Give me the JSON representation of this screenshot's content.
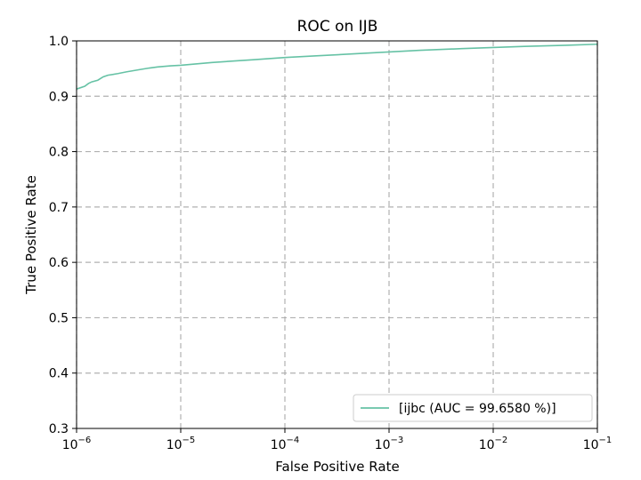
{
  "chart_data": {
    "type": "line",
    "title": "ROC on IJB",
    "xlabel": "False Positive Rate",
    "ylabel": "True Positive Rate",
    "x_scale": "log",
    "xlim": [
      1e-06,
      0.1
    ],
    "ylim": [
      0.3,
      1.0
    ],
    "x_ticks": [
      {
        "base": "10",
        "exp": "−6",
        "value": 1e-06
      },
      {
        "base": "10",
        "exp": "−5",
        "value": 1e-05
      },
      {
        "base": "10",
        "exp": "−4",
        "value": 0.0001
      },
      {
        "base": "10",
        "exp": "−3",
        "value": 0.001
      },
      {
        "base": "10",
        "exp": "−2",
        "value": 0.01
      },
      {
        "base": "10",
        "exp": "−1",
        "value": 0.1
      }
    ],
    "y_ticks": [
      "0.3",
      "0.4",
      "0.5",
      "0.6",
      "0.7",
      "0.8",
      "0.9",
      "1.0"
    ],
    "grid": true,
    "legend_position": "lower-right",
    "series": [
      {
        "name": "[ijbc (AUC = 99.6580 %)]",
        "color": "#66c2a5",
        "points": [
          [
            1e-06,
            0.913
          ],
          [
            1.2e-06,
            0.918
          ],
          [
            1.3e-06,
            0.923
          ],
          [
            1.4e-06,
            0.926
          ],
          [
            1.6e-06,
            0.929
          ],
          [
            1.8e-06,
            0.935
          ],
          [
            2e-06,
            0.938
          ],
          [
            2.5e-06,
            0.941
          ],
          [
            3e-06,
            0.944
          ],
          [
            4e-06,
            0.948
          ],
          [
            5e-06,
            0.951
          ],
          [
            6e-06,
            0.953
          ],
          [
            8e-06,
            0.955
          ],
          [
            1e-05,
            0.956
          ],
          [
            2e-05,
            0.961
          ],
          [
            5e-05,
            0.966
          ],
          [
            0.0001,
            0.97
          ],
          [
            0.0002,
            0.973
          ],
          [
            0.0005,
            0.977
          ],
          [
            0.001,
            0.98
          ],
          [
            0.002,
            0.983
          ],
          [
            0.005,
            0.986
          ],
          [
            0.01,
            0.988
          ],
          [
            0.02,
            0.99
          ],
          [
            0.05,
            0.992
          ],
          [
            0.1,
            0.994
          ]
        ]
      }
    ]
  }
}
